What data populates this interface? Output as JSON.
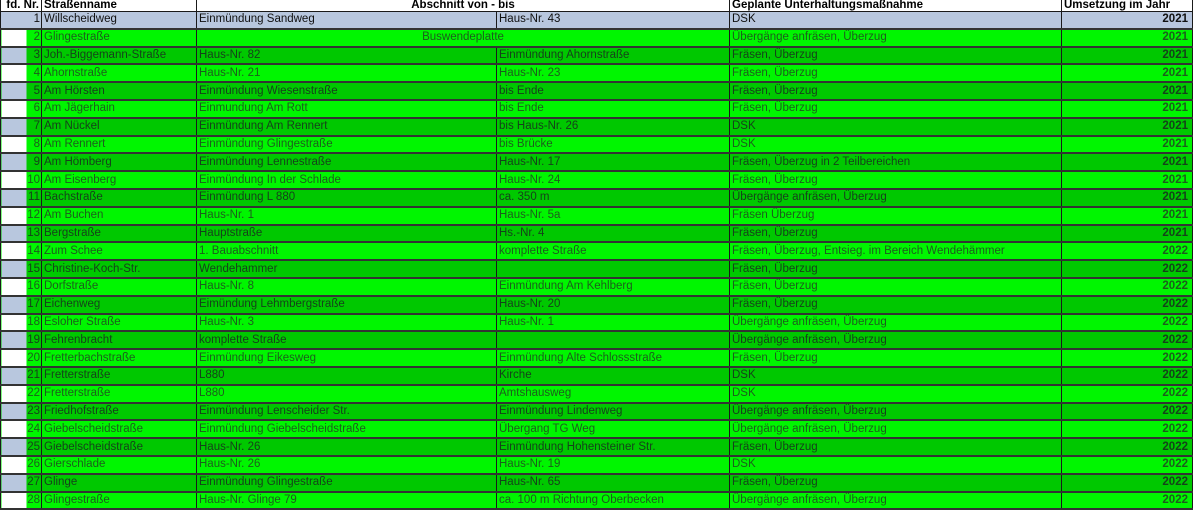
{
  "colors": {
    "header_row": "#b8c7de",
    "bright_green": "#00f600",
    "dark_green": "#00c800"
  },
  "headers": {
    "nr": "fd. Nr.",
    "name": "Straßenname",
    "section": "Abschnitt von - bis",
    "measure": "Geplante Unterhaltungsmaßnahme",
    "year": "Umsetzung im Jahr"
  },
  "rows": [
    {
      "nr": "1",
      "name": "Willscheidweg",
      "von": "Einmündung Sandweg",
      "bis": "Haus-Nr. 43",
      "measure": "DSK",
      "year": "2021"
    },
    {
      "nr": "2",
      "name": "Glingestraße",
      "merged": "Buswendeplatte",
      "measure": "Übergänge anfräsen, Überzug",
      "year": "2021"
    },
    {
      "nr": "3",
      "name": "Joh.-Biggemann-Straße",
      "von": "Haus-Nr. 82",
      "bis": "Einmündung Ahornstraße",
      "measure": "Fräsen, Überzug",
      "year": "2021"
    },
    {
      "nr": "4",
      "name": "Ahornstraße",
      "von": "Haus-Nr. 21",
      "bis": "Haus-Nr. 23",
      "measure": "Fräsen, Überzug",
      "year": "2021"
    },
    {
      "nr": "5",
      "name": "Am Hörsten",
      "von": "Einmündung Wiesenstraße",
      "bis": "bis Ende",
      "measure": "Fräsen, Überzug",
      "year": "2021"
    },
    {
      "nr": "6",
      "name": "Am Jägerhain",
      "von": "Einmundung Am Rott",
      "bis": "bis Ende",
      "measure": "Fräsen, Überzug",
      "year": "2021"
    },
    {
      "nr": "7",
      "name": "Am Nückel",
      "von": "Einmündung Am Rennert",
      "bis": "bis Haus-Nr. 26",
      "measure": "DSK",
      "year": "2021"
    },
    {
      "nr": "8",
      "name": "Am Rennert",
      "von": "Einmündung Glingestraße",
      "bis": "bis Brücke",
      "measure": "DSK",
      "year": "2021"
    },
    {
      "nr": "9",
      "name": "Am Hömberg",
      "von": "Einmündung Lennestraße",
      "bis": "Haus-Nr. 17",
      "measure": "Fräsen, Überzug in 2 Teilbereichen",
      "year": "2021"
    },
    {
      "nr": "10",
      "name": "Am Eisenberg",
      "von": "Einmündung In der Schlade",
      "bis": "Haus-Nr. 24",
      "measure": "Fräsen, Überzug",
      "year": "2021"
    },
    {
      "nr": "11",
      "name": "Bachstraße",
      "von": "Einmündung L 880",
      "bis": " ca. 350 m",
      "measure": "Übergänge anfräsen, Überzug",
      "year": "2021"
    },
    {
      "nr": "12",
      "name": "Am Buchen",
      "von": "Haus-Nr. 1",
      "bis": "Haus-Nr. 5a",
      "measure": "Fräsen Überzug",
      "year": "2021"
    },
    {
      "nr": "13",
      "name": "Bergstraße",
      "von": "Hauptstraße",
      "bis": "Hs.-Nr. 4",
      "measure": "Fräsen, Überzug",
      "year": "2021"
    },
    {
      "nr": "14",
      "name": "Zum Schee",
      "von": "1. Bauabschnitt",
      "bis": "komplette Straße",
      "measure": "Fräsen, Überzug, Entsieg. im Bereich Wendehämmer",
      "year": "2022"
    },
    {
      "nr": "15",
      "name": "Christine-Koch-Str.",
      "von": "Wendehammer",
      "bis": "",
      "measure": "Fräsen, Überzug",
      "year": "2022"
    },
    {
      "nr": "16",
      "name": "Dorfstraße",
      "von": "Haus-Nr. 8",
      "bis": "Einmündung Am Kehlberg",
      "measure": "Fräsen, Überzug",
      "year": "2022"
    },
    {
      "nr": "17",
      "name": "Eichenweg",
      "von": "Eimündung Lehmbergstraße",
      "bis": "Haus-Nr. 20",
      "measure": "Fräsen, Überzug",
      "year": "2022"
    },
    {
      "nr": "18",
      "name": "Esloher Straße",
      "von": "Haus-Nr. 3",
      "bis": "Haus-Nr. 1",
      "measure": "Übergänge anfräsen, Überzug",
      "year": "2022"
    },
    {
      "nr": "19",
      "name": "Fehrenbracht",
      "von": "komplette Straße",
      "bis": "",
      "measure": "Übergänge anfräsen, Überzug",
      "year": "2022"
    },
    {
      "nr": "20",
      "name": "Fretterbachstraße",
      "von": "Einmündung Eikesweg",
      "bis": "Einmündung Alte Schlossstraße",
      "measure": "Fräsen, Überzug",
      "year": "2022"
    },
    {
      "nr": "21",
      "name": "Fretterstraße",
      "von": "L880",
      "bis": "Kirche",
      "measure": "DSK",
      "year": "2022"
    },
    {
      "nr": "22",
      "name": "Fretterstraße",
      "von": "L880",
      "bis": "Amtshausweg",
      "measure": "DSK",
      "year": "2022"
    },
    {
      "nr": "23",
      "name": "Friedhofstraße",
      "von": "Einmündung Lenscheider Str.",
      "bis": "Einmündung Lindenweg",
      "measure": "Übergänge anfräsen, Überzug",
      "year": "2022"
    },
    {
      "nr": "24",
      "name": "Giebelscheidstraße",
      "von": "Einmündung Giebelscheidstraße",
      "bis": "Übergang TG Weg",
      "measure": "Übergänge anfräsen, Überzug",
      "year": "2022"
    },
    {
      "nr": "25",
      "name": "Giebelscheidstraße",
      "von": "Haus-Nr. 26",
      "bis": "Einmündung Hohensteiner Str.",
      "measure": "Fräsen, Überzug",
      "year": "2022"
    },
    {
      "nr": "26",
      "name": "Gierschlade",
      "von": "Haus-Nr. 26",
      "bis": "Haus-Nr. 19",
      "measure": "DSK",
      "year": "2022"
    },
    {
      "nr": "27",
      "name": "Glinge",
      "von": "Einmündung Glingestraße",
      "bis": "Haus-Nr. 65",
      "measure": "Fräsen, Überzug",
      "year": "2022"
    },
    {
      "nr": "28",
      "name": "Glingestraße",
      "von": "Haus-Nr. Glinge 79",
      "bis": "ca. 100 m Richtung Oberbecken",
      "measure": "Übergänge anfräsen, Überzug",
      "year": "2022"
    }
  ]
}
